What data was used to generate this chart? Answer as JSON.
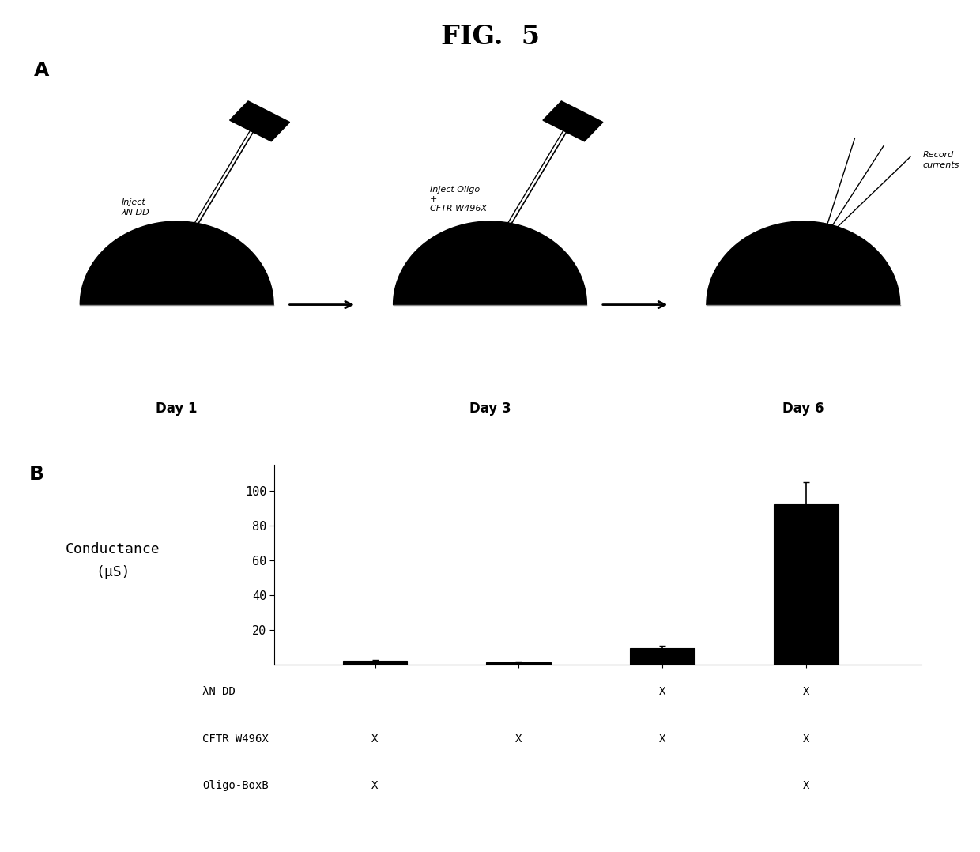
{
  "title": "FIG.  5",
  "panel_a_label": "A",
  "panel_b_label": "B",
  "day1_label": "Day 1",
  "day3_label": "Day 3",
  "day6_label": "Day 6",
  "day1_inject": "Inject\nλN DD",
  "day3_inject": "Inject Oligo\n+\nCFTR W496X",
  "day6_record": "Record\ncurrents",
  "bar_values": [
    2.0,
    1.5,
    9.5,
    92.0
  ],
  "bar_errors": [
    0.5,
    0.3,
    1.2,
    13.0
  ],
  "bar_color": "#000000",
  "bar_positions": [
    1,
    2,
    3,
    4
  ],
  "ylim": [
    0,
    115
  ],
  "yticks": [
    20,
    40,
    60,
    80,
    100
  ],
  "ylabel_line1": "Conductance",
  "ylabel_line2": "(μS)",
  "row_labels": [
    "λN DD",
    "CFTR W496X",
    "Oligo-BoxB"
  ],
  "table_data": [
    [
      "",
      "",
      "X",
      "X"
    ],
    [
      "X",
      "X",
      "X",
      "X"
    ],
    [
      "X",
      "",
      "",
      "X"
    ]
  ],
  "bg_color": "#ffffff",
  "text_color": "#000000"
}
